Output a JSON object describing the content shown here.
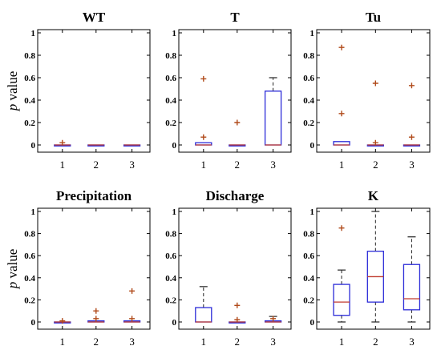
{
  "chart_data": [
    {
      "type": "box",
      "title": "WT",
      "ylabel": "p value",
      "ylim": [
        0,
        1
      ],
      "yticks": [
        0,
        0.2,
        0.4,
        0.6,
        0.8,
        1
      ],
      "categories": [
        "1",
        "2",
        "3"
      ],
      "boxes": [
        {
          "q1": 0,
          "median": 0,
          "q3": 0,
          "whisker_low": 0,
          "whisker_high": 0,
          "outliers": [
            0.02
          ]
        },
        {
          "q1": 0,
          "median": 0,
          "q3": 0,
          "whisker_low": 0,
          "whisker_high": 0,
          "outliers": []
        },
        {
          "q1": 0,
          "median": 0,
          "q3": 0,
          "whisker_low": 0,
          "whisker_high": 0,
          "outliers": []
        }
      ]
    },
    {
      "type": "box",
      "title": "T",
      "ylabel": "",
      "ylim": [
        0,
        1
      ],
      "yticks": [
        0,
        0.2,
        0.4,
        0.6,
        0.8,
        1
      ],
      "categories": [
        "1",
        "2",
        "3"
      ],
      "boxes": [
        {
          "q1": 0,
          "median": 0,
          "q3": 0.02,
          "whisker_low": 0,
          "whisker_high": 0.02,
          "outliers": [
            0.07,
            0.59
          ]
        },
        {
          "q1": 0,
          "median": 0,
          "q3": 0,
          "whisker_low": 0,
          "whisker_high": 0,
          "outliers": [
            0.2
          ]
        },
        {
          "q1": 0,
          "median": 0,
          "q3": 0.48,
          "whisker_low": 0,
          "whisker_high": 0.6,
          "outliers": []
        }
      ]
    },
    {
      "type": "box",
      "title": "Tu",
      "ylabel": "",
      "ylim": [
        0,
        1
      ],
      "yticks": [
        0,
        0.2,
        0.4,
        0.6,
        0.8,
        1
      ],
      "categories": [
        "1",
        "2",
        "3"
      ],
      "boxes": [
        {
          "q1": 0,
          "median": 0,
          "q3": 0.03,
          "whisker_low": 0,
          "whisker_high": 0.03,
          "outliers": [
            0.28,
            0.87
          ]
        },
        {
          "q1": 0,
          "median": 0,
          "q3": 0,
          "whisker_low": 0,
          "whisker_high": 0,
          "outliers": [
            0.02,
            0.55
          ]
        },
        {
          "q1": 0,
          "median": 0,
          "q3": 0,
          "whisker_low": 0,
          "whisker_high": 0,
          "outliers": [
            0.07,
            0.53
          ]
        }
      ]
    },
    {
      "type": "box",
      "title": "Precipitation",
      "ylabel": "p value",
      "ylim": [
        0,
        1
      ],
      "yticks": [
        0,
        0.2,
        0.4,
        0.6,
        0.8,
        1
      ],
      "categories": [
        "1",
        "2",
        "3"
      ],
      "boxes": [
        {
          "q1": 0,
          "median": 0,
          "q3": 0,
          "whisker_low": 0,
          "whisker_high": 0,
          "outliers": [
            0.01
          ]
        },
        {
          "q1": 0,
          "median": 0,
          "q3": 0.01,
          "whisker_low": 0,
          "whisker_high": 0.01,
          "outliers": [
            0.03,
            0.1
          ]
        },
        {
          "q1": 0,
          "median": 0,
          "q3": 0.01,
          "whisker_low": 0,
          "whisker_high": 0.01,
          "outliers": [
            0.03,
            0.28
          ]
        }
      ]
    },
    {
      "type": "box",
      "title": "Discharge",
      "ylabel": "",
      "ylim": [
        0,
        1
      ],
      "yticks": [
        0,
        0.2,
        0.4,
        0.6,
        0.8,
        1
      ],
      "categories": [
        "1",
        "2",
        "3"
      ],
      "boxes": [
        {
          "q1": 0,
          "median": 0,
          "q3": 0.13,
          "whisker_low": 0,
          "whisker_high": 0.32,
          "outliers": []
        },
        {
          "q1": 0,
          "median": 0,
          "q3": 0,
          "whisker_low": 0,
          "whisker_high": 0,
          "outliers": [
            0.02,
            0.15
          ]
        },
        {
          "q1": 0,
          "median": 0,
          "q3": 0.01,
          "whisker_low": 0,
          "whisker_high": 0.05,
          "outliers": [
            0.03
          ]
        }
      ]
    },
    {
      "type": "box",
      "title": "K",
      "ylabel": "",
      "ylim": [
        0,
        1
      ],
      "yticks": [
        0,
        0.2,
        0.4,
        0.6,
        0.8,
        1
      ],
      "categories": [
        "1",
        "2",
        "3"
      ],
      "boxes": [
        {
          "q1": 0.06,
          "median": 0.18,
          "q3": 0.34,
          "whisker_low": 0,
          "whisker_high": 0.47,
          "outliers": [
            0.85
          ]
        },
        {
          "q1": 0.18,
          "median": 0.41,
          "q3": 0.64,
          "whisker_low": 0,
          "whisker_high": 1.0,
          "outliers": []
        },
        {
          "q1": 0.11,
          "median": 0.21,
          "q3": 0.52,
          "whisker_low": 0,
          "whisker_high": 0.77,
          "outliers": []
        }
      ]
    }
  ],
  "colors": {
    "box": "#2b2bd8",
    "median": "#c03a2e",
    "outlier": "#b04a1a",
    "whisker": "#222222"
  }
}
